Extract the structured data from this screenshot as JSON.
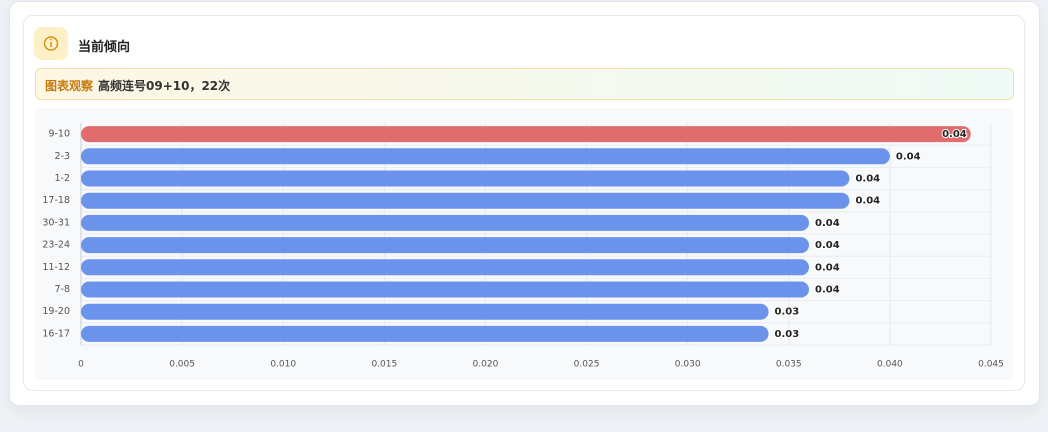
{
  "header": {
    "title": "当前倾向"
  },
  "observation": {
    "label": "图表观察",
    "text": "高频连号09+10，22次"
  },
  "chart_data": {
    "type": "hbar",
    "categories": [
      "9-10",
      "2-3",
      "1-2",
      "17-18",
      "30-31",
      "23-24",
      "11-12",
      "7-8",
      "19-20",
      "16-17"
    ],
    "values": [
      0.044,
      0.04,
      0.038,
      0.038,
      0.036,
      0.036,
      0.036,
      0.036,
      0.034,
      0.034
    ],
    "value_labels": [
      "0.04",
      "0.04",
      "0.04",
      "0.04",
      "0.04",
      "0.04",
      "0.04",
      "0.04",
      "0.03",
      "0.03"
    ],
    "colors": [
      "#e06c6e",
      "#6b93ec",
      "#6b93ec",
      "#6b93ec",
      "#6b93ec",
      "#6b93ec",
      "#6b93ec",
      "#6b93ec",
      "#6b93ec",
      "#6b93ec"
    ],
    "xlim": [
      0,
      0.045
    ],
    "xticks": [
      0,
      0.005,
      {
        "value": 0.01,
        "label": "0.010"
      },
      0.015,
      {
        "value": 0.02,
        "label": "0.020"
      },
      0.025,
      {
        "value": 0.03,
        "label": "0.030"
      },
      0.035,
      {
        "value": 0.04,
        "label": "0.040"
      },
      0.045
    ],
    "grid": true
  }
}
